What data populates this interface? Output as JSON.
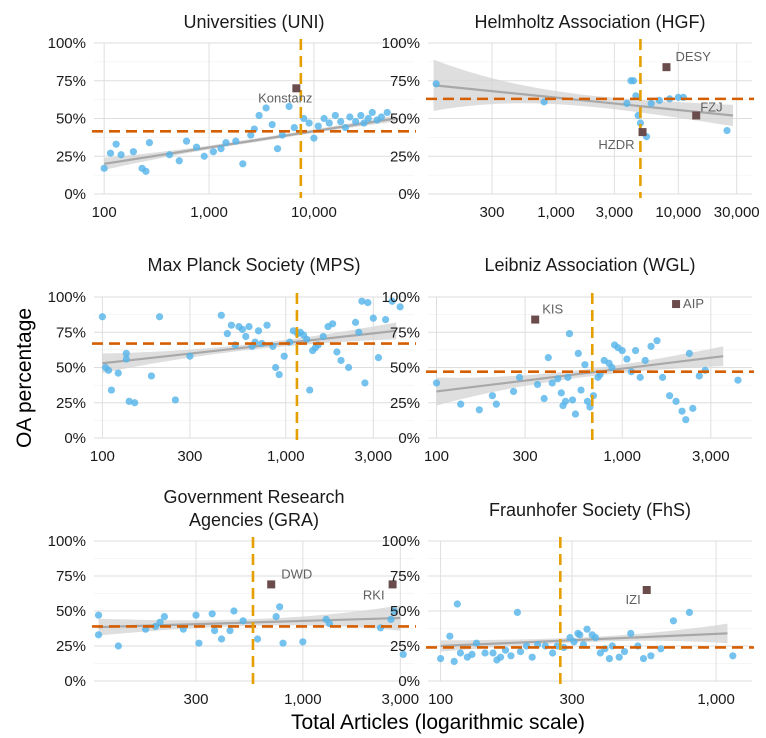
{
  "figure": {
    "xlabel": "Total Articles (logarithmic scale)",
    "ylabel": "OA percentage",
    "colors": {
      "point": "#56b4e9",
      "highlight": "#6b4c4c",
      "mean_line": "#d55e00",
      "median_line": "#e69f00",
      "trend": "#a8a8a8",
      "band": "#d3d3d3",
      "grid": "#dedede"
    }
  },
  "chart_data": [
    {
      "type": "scatter",
      "title": "Universities (UNI)",
      "x_scale": "log",
      "xlim": [
        80,
        90000
      ],
      "ylim": [
        0,
        1
      ],
      "y_ticks": [
        "0%",
        "25%",
        "50%",
        "75%",
        "100%"
      ],
      "x_ticks": [
        {
          "v": 100,
          "label": "100"
        },
        {
          "v": 1000,
          "label": "1,000"
        },
        {
          "v": 10000,
          "label": "10,000"
        }
      ],
      "hline_y": 0.415,
      "vline_x": 7500,
      "trend": {
        "x": [
          100,
          60000
        ],
        "y": [
          0.2,
          0.5
        ],
        "band": [
          0.04,
          0.02
        ]
      },
      "points": [
        [
          100,
          0.17
        ],
        [
          115,
          0.27
        ],
        [
          130,
          0.33
        ],
        [
          145,
          0.26
        ],
        [
          190,
          0.28
        ],
        [
          230,
          0.17
        ],
        [
          270,
          0.34
        ],
        [
          250,
          0.15
        ],
        [
          420,
          0.26
        ],
        [
          520,
          0.22
        ],
        [
          610,
          0.35
        ],
        [
          760,
          0.31
        ],
        [
          900,
          0.25
        ],
        [
          1100,
          0.28
        ],
        [
          1300,
          0.3
        ],
        [
          1450,
          0.34
        ],
        [
          1800,
          0.35
        ],
        [
          2100,
          0.2
        ],
        [
          2500,
          0.39
        ],
        [
          2700,
          0.43
        ],
        [
          3000,
          0.52
        ],
        [
          3500,
          0.57
        ],
        [
          4000,
          0.46
        ],
        [
          4500,
          0.3
        ],
        [
          5000,
          0.39
        ],
        [
          5800,
          0.58
        ],
        [
          6500,
          0.44
        ],
        [
          8000,
          0.5
        ],
        [
          9000,
          0.47
        ],
        [
          10000,
          0.37
        ],
        [
          11000,
          0.45
        ],
        [
          12500,
          0.5
        ],
        [
          14000,
          0.47
        ],
        [
          16000,
          0.52
        ],
        [
          18000,
          0.48
        ],
        [
          20000,
          0.44
        ],
        [
          22000,
          0.51
        ],
        [
          25000,
          0.48
        ],
        [
          28000,
          0.52
        ],
        [
          30000,
          0.47
        ],
        [
          33000,
          0.5
        ],
        [
          36000,
          0.54
        ],
        [
          40000,
          0.49
        ],
        [
          44000,
          0.51
        ],
        [
          50000,
          0.54
        ]
      ],
      "highlights": [
        {
          "x": 6800,
          "y": 0.7,
          "label": "Konstanz"
        }
      ]
    },
    {
      "type": "scatter",
      "title": "Helmholtz Association (HGF)",
      "x_scale": "log",
      "xlim": [
        90,
        40000
      ],
      "ylim": [
        0,
        1
      ],
      "y_ticks": [
        "0%",
        "25%",
        "50%",
        "75%",
        "100%"
      ],
      "x_ticks": [
        {
          "v": 300,
          "label": "300"
        },
        {
          "v": 1000,
          "label": "1,000"
        },
        {
          "v": 3000,
          "label": "3,000"
        },
        {
          "v": 10000,
          "label": "10,000"
        },
        {
          "v": 30000,
          "label": "30,000"
        }
      ],
      "hline_y": 0.63,
      "vline_x": 4900,
      "trend": {
        "x": [
          100,
          28000
        ],
        "y": [
          0.72,
          0.52
        ],
        "band": [
          0.17,
          0.07
        ]
      },
      "points": [
        [
          105,
          0.73
        ],
        [
          800,
          0.61
        ],
        [
          3800,
          0.6
        ],
        [
          4100,
          0.75
        ],
        [
          4300,
          0.75
        ],
        [
          4500,
          0.65
        ],
        [
          4700,
          0.52
        ],
        [
          4900,
          0.47
        ],
        [
          5500,
          0.38
        ],
        [
          6000,
          0.6
        ],
        [
          7000,
          0.62
        ],
        [
          8500,
          0.63
        ],
        [
          10000,
          0.64
        ],
        [
          11000,
          0.64
        ],
        [
          25000,
          0.42
        ]
      ],
      "highlights": [
        {
          "x": 8000,
          "y": 0.84,
          "label": "DESY"
        },
        {
          "x": 5100,
          "y": 0.41,
          "label": "HZDR"
        },
        {
          "x": 14000,
          "y": 0.52,
          "label": "FZJ"
        }
      ]
    },
    {
      "type": "scatter",
      "title": "Max Planck Society (MPS)",
      "x_scale": "log",
      "xlim": [
        90,
        5000
      ],
      "ylim": [
        0,
        1
      ],
      "y_ticks": [
        "0%",
        "25%",
        "50%",
        "75%",
        "100%"
      ],
      "x_ticks": [
        {
          "v": 100,
          "label": "100"
        },
        {
          "v": 300,
          "label": "300"
        },
        {
          "v": 1000,
          "label": "1,000"
        },
        {
          "v": 3000,
          "label": "3,000"
        }
      ],
      "hline_y": 0.67,
      "vline_x": 1150,
      "trend": {
        "x": [
          100,
          4000
        ],
        "y": [
          0.53,
          0.76
        ],
        "band": [
          0.07,
          0.06
        ]
      },
      "points": [
        [
          100,
          0.86
        ],
        [
          104,
          0.5
        ],
        [
          108,
          0.48
        ],
        [
          112,
          0.34
        ],
        [
          122,
          0.46
        ],
        [
          135,
          0.6
        ],
        [
          135,
          0.56
        ],
        [
          140,
          0.26
        ],
        [
          150,
          0.25
        ],
        [
          185,
          0.44
        ],
        [
          205,
          0.86
        ],
        [
          250,
          0.27
        ],
        [
          300,
          0.58
        ],
        [
          445,
          0.87
        ],
        [
          480,
          0.74
        ],
        [
          505,
          0.8
        ],
        [
          530,
          0.66
        ],
        [
          555,
          0.79
        ],
        [
          580,
          0.77
        ],
        [
          605,
          0.72
        ],
        [
          630,
          0.79
        ],
        [
          655,
          0.65
        ],
        [
          680,
          0.68
        ],
        [
          710,
          0.76
        ],
        [
          740,
          0.67
        ],
        [
          790,
          0.8
        ],
        [
          850,
          0.65
        ],
        [
          880,
          0.5
        ],
        [
          920,
          0.45
        ],
        [
          980,
          0.58
        ],
        [
          1050,
          0.68
        ],
        [
          1100,
          0.76
        ],
        [
          1160,
          0.74
        ],
        [
          1200,
          0.75
        ],
        [
          1250,
          0.73
        ],
        [
          1300,
          0.7
        ],
        [
          1350,
          0.34
        ],
        [
          1400,
          0.62
        ],
        [
          1450,
          0.64
        ],
        [
          1500,
          0.66
        ],
        [
          1600,
          0.72
        ],
        [
          1700,
          0.79
        ],
        [
          1800,
          0.81
        ],
        [
          1900,
          0.61
        ],
        [
          2000,
          0.55
        ],
        [
          2200,
          0.5
        ],
        [
          2400,
          0.82
        ],
        [
          2500,
          0.75
        ],
        [
          2600,
          0.97
        ],
        [
          2700,
          0.39
        ],
        [
          2800,
          0.96
        ],
        [
          3000,
          0.85
        ],
        [
          3200,
          0.57
        ],
        [
          3500,
          0.84
        ],
        [
          3800,
          0.97
        ],
        [
          4200,
          0.93
        ]
      ],
      "highlights": []
    },
    {
      "type": "scatter",
      "title": "Leibniz Association (WGL)",
      "x_scale": "log",
      "xlim": [
        90,
        5000
      ],
      "ylim": [
        0,
        1
      ],
      "y_ticks": [
        "0%",
        "25%",
        "50%",
        "75%",
        "100%"
      ],
      "x_ticks": [
        {
          "v": 100,
          "label": "100"
        },
        {
          "v": 300,
          "label": "300"
        },
        {
          "v": 1000,
          "label": "1,000"
        },
        {
          "v": 3000,
          "label": "3,000"
        }
      ],
      "hline_y": 0.47,
      "vline_x": 690,
      "trend": {
        "x": [
          100,
          3500
        ],
        "y": [
          0.33,
          0.58
        ],
        "band": [
          0.1,
          0.07
        ]
      },
      "points": [
        [
          100,
          0.39
        ],
        [
          135,
          0.24
        ],
        [
          170,
          0.2
        ],
        [
          200,
          0.3
        ],
        [
          210,
          0.24
        ],
        [
          260,
          0.33
        ],
        [
          280,
          0.43
        ],
        [
          350,
          0.38
        ],
        [
          380,
          0.28
        ],
        [
          400,
          0.57
        ],
        [
          420,
          0.39
        ],
        [
          450,
          0.42
        ],
        [
          470,
          0.32
        ],
        [
          480,
          0.23
        ],
        [
          495,
          0.26
        ],
        [
          510,
          0.43
        ],
        [
          520,
          0.74
        ],
        [
          540,
          0.27
        ],
        [
          560,
          0.17
        ],
        [
          580,
          0.6
        ],
        [
          600,
          0.34
        ],
        [
          630,
          0.52
        ],
        [
          650,
          0.26
        ],
        [
          670,
          0.22
        ],
        [
          700,
          0.3
        ],
        [
          740,
          0.43
        ],
        [
          760,
          0.45
        ],
        [
          800,
          0.55
        ],
        [
          850,
          0.53
        ],
        [
          880,
          0.5
        ],
        [
          910,
          0.66
        ],
        [
          950,
          0.64
        ],
        [
          1000,
          0.62
        ],
        [
          1060,
          0.56
        ],
        [
          1120,
          0.47
        ],
        [
          1180,
          0.62
        ],
        [
          1250,
          0.43
        ],
        [
          1330,
          0.55
        ],
        [
          1430,
          0.65
        ],
        [
          1540,
          0.69
        ],
        [
          1650,
          0.43
        ],
        [
          1800,
          0.3
        ],
        [
          1950,
          0.26
        ],
        [
          2100,
          0.19
        ],
        [
          2200,
          0.13
        ],
        [
          2300,
          0.6
        ],
        [
          2400,
          0.21
        ],
        [
          2600,
          0.44
        ],
        [
          2800,
          0.48
        ],
        [
          4200,
          0.41
        ]
      ],
      "highlights": [
        {
          "x": 340,
          "y": 0.84,
          "label": "KIS"
        },
        {
          "x": 1950,
          "y": 0.95,
          "label": "AIP"
        }
      ]
    },
    {
      "type": "scatter",
      "title": "Government Research Agencies (GRA)",
      "x_scale": "log",
      "xlim": [
        95,
        3500
      ],
      "ylim": [
        0,
        1
      ],
      "y_ticks": [
        "0%",
        "25%",
        "50%",
        "75%",
        "100%"
      ],
      "x_ticks": [
        {
          "v": 300,
          "label": "300"
        },
        {
          "v": 1000,
          "label": "1,000"
        },
        {
          "v": 3000,
          "label": "3,000"
        }
      ],
      "hline_y": 0.39,
      "vline_x": 570,
      "trend": {
        "x": [
          100,
          3000
        ],
        "y": [
          0.385,
          0.45
        ],
        "band": [
          0.06,
          0.09
        ]
      },
      "points": [
        [
          100,
          0.33
        ],
        [
          100,
          0.47
        ],
        [
          125,
          0.25
        ],
        [
          170,
          0.37
        ],
        [
          190,
          0.39
        ],
        [
          200,
          0.42
        ],
        [
          210,
          0.46
        ],
        [
          260,
          0.37
        ],
        [
          300,
          0.47
        ],
        [
          310,
          0.27
        ],
        [
          360,
          0.48
        ],
        [
          370,
          0.36
        ],
        [
          400,
          0.3
        ],
        [
          440,
          0.36
        ],
        [
          460,
          0.5
        ],
        [
          510,
          0.43
        ],
        [
          600,
          0.3
        ],
        [
          740,
          0.46
        ],
        [
          770,
          0.53
        ],
        [
          800,
          0.27
        ],
        [
          1000,
          0.28
        ],
        [
          1300,
          0.44
        ],
        [
          1350,
          0.41
        ],
        [
          2400,
          0.38
        ],
        [
          2700,
          0.44
        ],
        [
          2800,
          0.5
        ],
        [
          3100,
          0.19
        ]
      ],
      "highlights": [
        {
          "x": 700,
          "y": 0.69,
          "label": "DWD"
        },
        {
          "x": 2750,
          "y": 0.69,
          "label": "RKI"
        }
      ]
    },
    {
      "type": "scatter",
      "title": "Fraunhofer Society (FhS)",
      "x_scale": "log",
      "xlim": [
        90,
        1350
      ],
      "ylim": [
        0,
        1
      ],
      "y_ticks": [
        "0%",
        "25%",
        "50%",
        "75%",
        "100%"
      ],
      "x_ticks": [
        {
          "v": 100,
          "label": "100"
        },
        {
          "v": 300,
          "label": "300"
        },
        {
          "v": 1000,
          "label": "1,000"
        }
      ],
      "hline_y": 0.24,
      "vline_x": 272,
      "trend": {
        "x": [
          100,
          1100
        ],
        "y": [
          0.25,
          0.34
        ],
        "band": [
          0.04,
          0.07
        ]
      },
      "points": [
        [
          100,
          0.16
        ],
        [
          108,
          0.32
        ],
        [
          112,
          0.14
        ],
        [
          115,
          0.55
        ],
        [
          118,
          0.2
        ],
        [
          125,
          0.17
        ],
        [
          130,
          0.19
        ],
        [
          135,
          0.27
        ],
        [
          145,
          0.2
        ],
        [
          155,
          0.2
        ],
        [
          160,
          0.15
        ],
        [
          165,
          0.17
        ],
        [
          172,
          0.22
        ],
        [
          180,
          0.18
        ],
        [
          190,
          0.49
        ],
        [
          195,
          0.21
        ],
        [
          205,
          0.25
        ],
        [
          215,
          0.17
        ],
        [
          225,
          0.26
        ],
        [
          240,
          0.25
        ],
        [
          255,
          0.2
        ],
        [
          265,
          0.25
        ],
        [
          280,
          0.24
        ],
        [
          295,
          0.31
        ],
        [
          305,
          0.28
        ],
        [
          315,
          0.34
        ],
        [
          320,
          0.33
        ],
        [
          330,
          0.26
        ],
        [
          340,
          0.37
        ],
        [
          355,
          0.33
        ],
        [
          365,
          0.31
        ],
        [
          380,
          0.2
        ],
        [
          395,
          0.23
        ],
        [
          410,
          0.16
        ],
        [
          420,
          0.25
        ],
        [
          445,
          0.17
        ],
        [
          465,
          0.21
        ],
        [
          490,
          0.34
        ],
        [
          520,
          0.25
        ],
        [
          545,
          0.16
        ],
        [
          580,
          0.18
        ],
        [
          630,
          0.23
        ],
        [
          700,
          0.43
        ],
        [
          800,
          0.49
        ],
        [
          1150,
          0.18
        ]
      ],
      "highlights": [
        {
          "x": 560,
          "y": 0.65,
          "label": "IZI"
        }
      ]
    }
  ]
}
